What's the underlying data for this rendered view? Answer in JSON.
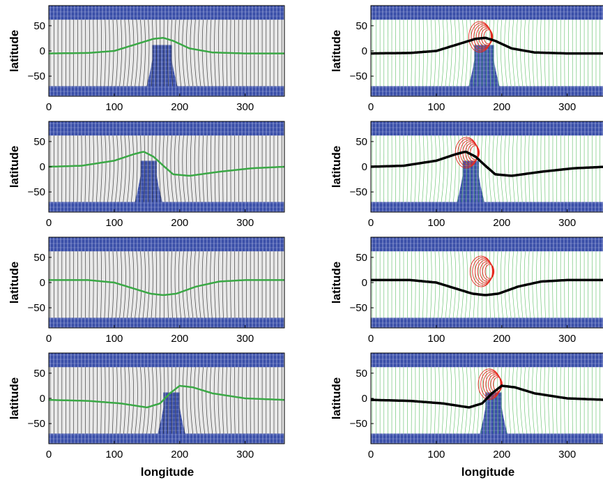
{
  "figure": {
    "xlabel": "longitude",
    "ylabel": "latitude",
    "colors": {
      "ocean": "#3a4fa8",
      "ocean_line": "#c8d0ee",
      "land_left": "#e9e9e9",
      "lines_left": "#2f2f2f",
      "land_right": "#ffffff",
      "lines_right": "#3fb34a",
      "closed_right": "#e52a20",
      "path_left": "#3aa845",
      "path_right": "#000000"
    }
  },
  "chart_data": [
    {
      "type": "map-panel",
      "column": "left",
      "row": 1,
      "xlim": [
        0,
        360
      ],
      "ylim": [
        -90,
        90
      ],
      "xticks": [
        0,
        100,
        200,
        300
      ],
      "yticks": [
        50,
        0,
        -50
      ],
      "path": {
        "x": [
          0,
          60,
          100,
          130,
          160,
          175,
          190,
          215,
          250,
          300,
          360
        ],
        "y": [
          -5,
          -4,
          0,
          12,
          24,
          26,
          20,
          5,
          -3,
          -5,
          -5
        ]
      },
      "gap": {
        "x0": 158,
        "x1": 188,
        "ylow": -90
      }
    },
    {
      "type": "map-panel",
      "column": "right",
      "row": 1,
      "xlim": [
        0,
        360
      ],
      "ylim": [
        -90,
        90
      ],
      "xticks": [
        0,
        100,
        200,
        300
      ],
      "yticks": [
        50,
        0,
        -50
      ],
      "path": {
        "x": [
          0,
          60,
          100,
          130,
          160,
          175,
          190,
          215,
          250,
          300,
          360
        ],
        "y": [
          -5,
          -4,
          0,
          12,
          24,
          26,
          20,
          5,
          -3,
          -5,
          -5
        ]
      },
      "gap": {
        "x0": 158,
        "x1": 188,
        "ylow": -90
      }
    },
    {
      "type": "map-panel",
      "column": "left",
      "row": 2,
      "xlim": [
        0,
        360
      ],
      "ylim": [
        -90,
        90
      ],
      "xticks": [
        0,
        100,
        200,
        300
      ],
      "yticks": [
        50,
        0,
        -50
      ],
      "path": {
        "x": [
          0,
          50,
          100,
          130,
          145,
          160,
          175,
          190,
          215,
          260,
          310,
          360
        ],
        "y": [
          0,
          2,
          12,
          25,
          30,
          20,
          2,
          -15,
          -18,
          -10,
          -3,
          0
        ]
      },
      "gap": {
        "x0": 140,
        "x1": 165,
        "ylow": -90
      }
    },
    {
      "type": "map-panel",
      "column": "right",
      "row": 2,
      "xlim": [
        0,
        360
      ],
      "ylim": [
        -90,
        90
      ],
      "xticks": [
        0,
        100,
        200,
        300
      ],
      "yticks": [
        50,
        0,
        -50
      ],
      "path": {
        "x": [
          0,
          50,
          100,
          130,
          145,
          160,
          175,
          190,
          215,
          260,
          310,
          360
        ],
        "y": [
          0,
          2,
          12,
          25,
          30,
          20,
          2,
          -15,
          -18,
          -10,
          -3,
          0
        ]
      },
      "gap": {
        "x0": 140,
        "x1": 165,
        "ylow": -90
      }
    },
    {
      "type": "map-panel",
      "column": "left",
      "row": 3,
      "xlim": [
        0,
        360
      ],
      "ylim": [
        -90,
        90
      ],
      "xticks": [
        0,
        100,
        200,
        300
      ],
      "yticks": [
        50,
        0,
        -50
      ],
      "path": {
        "x": [
          0,
          60,
          100,
          130,
          155,
          175,
          195,
          225,
          260,
          300,
          360
        ],
        "y": [
          5,
          5,
          0,
          -12,
          -22,
          -25,
          -22,
          -8,
          2,
          5,
          5
        ]
      },
      "gap": null
    },
    {
      "type": "map-panel",
      "column": "right",
      "row": 3,
      "xlim": [
        0,
        360
      ],
      "ylim": [
        -90,
        90
      ],
      "xticks": [
        0,
        100,
        200,
        300
      ],
      "yticks": [
        50,
        0,
        -50
      ],
      "path": {
        "x": [
          0,
          60,
          100,
          130,
          155,
          175,
          195,
          225,
          260,
          300,
          360
        ],
        "y": [
          5,
          5,
          0,
          -12,
          -22,
          -25,
          -22,
          -8,
          2,
          5,
          5
        ]
      },
      "gap": null
    },
    {
      "type": "map-panel",
      "column": "left",
      "row": 4,
      "xlim": [
        0,
        360
      ],
      "ylim": [
        -90,
        90
      ],
      "xticks": [
        0,
        100,
        200,
        300
      ],
      "yticks": [
        50,
        0,
        -50
      ],
      "path": {
        "x": [
          0,
          60,
          110,
          150,
          170,
          185,
          200,
          220,
          250,
          300,
          360
        ],
        "y": [
          -3,
          -5,
          -10,
          -18,
          -10,
          10,
          25,
          22,
          10,
          0,
          -3
        ]
      },
      "gap": {
        "x0": 175,
        "x1": 200,
        "ylow": -90
      }
    },
    {
      "type": "map-panel",
      "column": "right",
      "row": 4,
      "xlim": [
        0,
        360
      ],
      "ylim": [
        -90,
        90
      ],
      "xticks": [
        0,
        100,
        200,
        300
      ],
      "yticks": [
        50,
        0,
        -50
      ],
      "path": {
        "x": [
          0,
          60,
          110,
          150,
          170,
          185,
          200,
          220,
          250,
          300,
          360
        ],
        "y": [
          -3,
          -5,
          -10,
          -18,
          -10,
          10,
          25,
          22,
          10,
          0,
          -3
        ]
      },
      "gap": {
        "x0": 175,
        "x1": 200,
        "ylow": -90
      }
    }
  ]
}
